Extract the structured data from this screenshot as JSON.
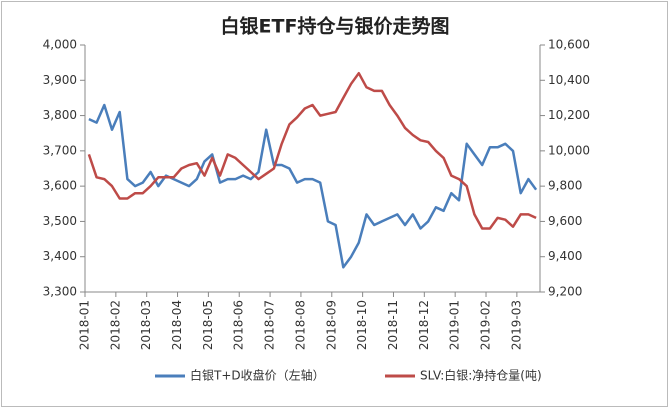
{
  "chart_data": {
    "type": "line",
    "title": "白银ETF持仓与银价走势图",
    "categories": [
      "2018-01",
      null,
      null,
      null,
      "2018-02",
      null,
      null,
      null,
      "2018-03",
      null,
      null,
      null,
      "2018-04",
      null,
      null,
      null,
      "2018-05",
      null,
      null,
      null,
      "2018-06",
      null,
      null,
      null,
      "2018-07",
      null,
      null,
      null,
      "2018-08",
      null,
      null,
      null,
      "2018-09",
      null,
      null,
      null,
      "2018-10",
      null,
      null,
      null,
      "2018-11",
      null,
      null,
      null,
      "2018-12",
      null,
      null,
      null,
      "2019-01",
      null,
      null,
      null,
      "2019-02",
      null,
      null,
      null,
      "2019-03",
      null,
      null
    ],
    "series": [
      {
        "name": "白银T+D收盘价（左轴）",
        "color": "#4a7ebb",
        "values": [
          3790,
          3780,
          3830,
          3760,
          3810,
          3620,
          3600,
          3610,
          3640,
          3600,
          3630,
          3620,
          3610,
          3600,
          3620,
          3670,
          3690,
          3610,
          3620,
          3620,
          3630,
          3620,
          3640,
          3760,
          3660,
          3660,
          3650,
          3610,
          3620,
          3620,
          3610,
          3500,
          3490,
          3370,
          3400,
          3440,
          3520,
          3490,
          3500,
          3510,
          3520,
          3490,
          3520,
          3480,
          3500,
          3540,
          3530,
          3580,
          3560,
          3720,
          3690,
          3660,
          3710,
          3710,
          3720,
          3700,
          3580,
          3620,
          3590
        ]
      },
      {
        "name": "SLV:白银:净持仓量(吨)",
        "color": "#be4b48",
        "axis": "y2",
        "values": [
          9980,
          9850,
          9840,
          9800,
          9730,
          9730,
          9760,
          9760,
          9800,
          9850,
          9850,
          9850,
          9900,
          9920,
          9930,
          9860,
          9960,
          9860,
          9980,
          9960,
          9920,
          9880,
          9840,
          9870,
          9900,
          10040,
          10150,
          10190,
          10240,
          10260,
          10200,
          10210,
          10220,
          10300,
          10380,
          10440,
          10360,
          10340,
          10340,
          10260,
          10200,
          10130,
          10090,
          10060,
          10050,
          10000,
          9960,
          9860,
          9840,
          9800,
          9640,
          9560,
          9560,
          9620,
          9610,
          9570,
          9640,
          9640,
          9620
        ]
      }
    ],
    "ylim": [
      3300,
      4000
    ],
    "yticks": [
      {
        "value": 3300,
        "label": "3,300"
      },
      {
        "value": 3400,
        "label": "3,400"
      },
      {
        "value": 3500,
        "label": "3,500"
      },
      {
        "value": 3600,
        "label": "3,600"
      },
      {
        "value": 3700,
        "label": "3,700"
      },
      {
        "value": 3800,
        "label": "3,800"
      },
      {
        "value": 3900,
        "label": "3,900"
      },
      {
        "value": 4000,
        "label": "4,000"
      }
    ],
    "y2lim": [
      9200,
      10600
    ],
    "y2ticks": [
      {
        "value": 9200,
        "label": "9,200"
      },
      {
        "value": 9400,
        "label": "9,400"
      },
      {
        "value": 9600,
        "label": "9,600"
      },
      {
        "value": 9800,
        "label": "9,800"
      },
      {
        "value": 10000,
        "label": "10,000"
      },
      {
        "value": 10200,
        "label": "10,200"
      },
      {
        "value": 10400,
        "label": "10,400"
      },
      {
        "value": 10600,
        "label": "10,600"
      }
    ],
    "legend": "bottom"
  }
}
